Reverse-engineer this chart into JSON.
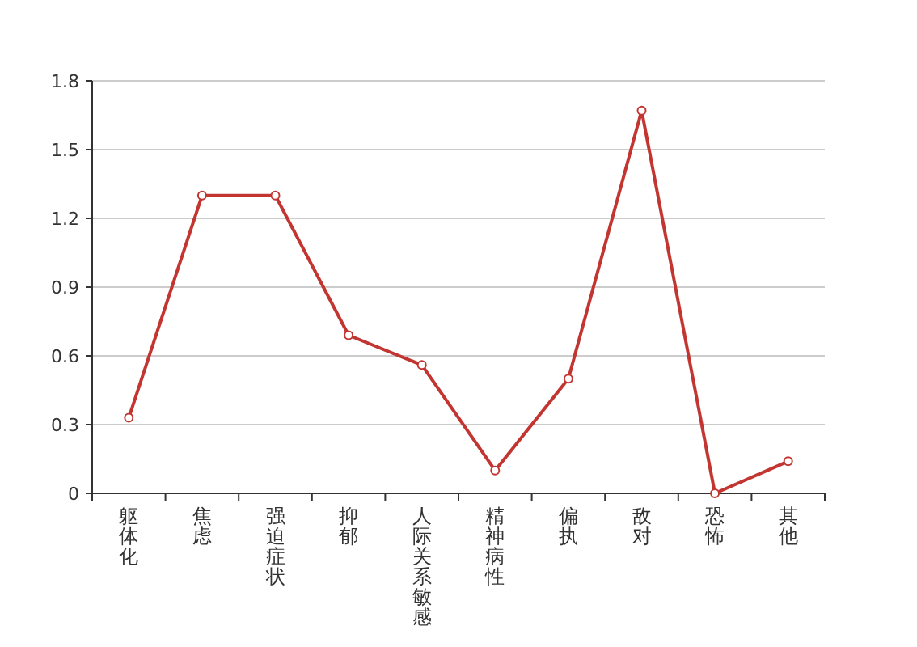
{
  "chart_data": {
    "type": "line",
    "categories": [
      "躯体化",
      "焦虑",
      "强迫症状",
      "抑郁",
      "人际关系敏感",
      "精神病性",
      "偏执",
      "敌对",
      "恐怖",
      "其他"
    ],
    "series": [
      {
        "color": "#c23531",
        "values": [
          0.33,
          1.3,
          1.3,
          0.69,
          0.56,
          0.1,
          0.5,
          1.67,
          0,
          0.14
        ]
      }
    ],
    "ylim": [
      0,
      1.8
    ],
    "yticks": [
      0,
      0.3,
      0.6,
      0.9,
      1.2,
      1.5,
      1.8
    ],
    "grid": "y",
    "marker": "circle",
    "line_style": "solid"
  }
}
